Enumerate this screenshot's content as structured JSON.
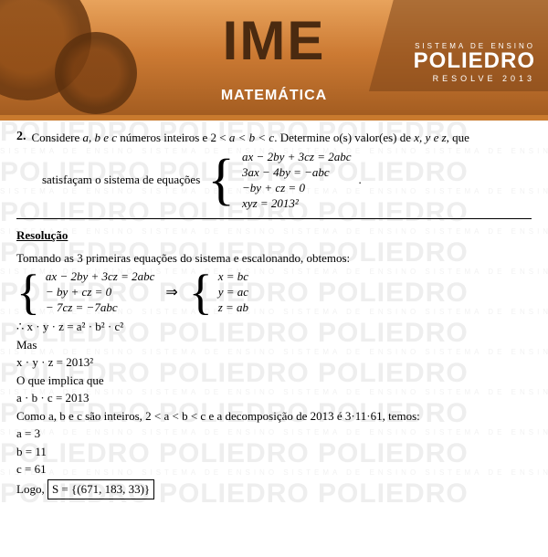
{
  "header": {
    "title": "IME",
    "subject": "MATEMÁTICA",
    "brand_sys": "SISTEMA DE ENSINO",
    "brand_name": "POLIEDRO",
    "brand_tag": "RESOLVE 2013"
  },
  "watermark": {
    "big": "POLIEDRO POLIEDRO POLIEDRO",
    "small": "SISTEMA DE ENSINO   SISTEMA DE ENSINO   SISTEMA DE ENSINO   SISTEMA DE ENSINO"
  },
  "question": {
    "number": "2.",
    "text_1": "Considere ",
    "vars": "a, b e c",
    "text_2": " números inteiros e 2 < ",
    "ineq": "a < b < c",
    "text_3": ". Determine o(s) valor(es) de ",
    "xyz": "x, y e z",
    "text_4": ", que",
    "satisfy": "satisfaçam o sistema de equações",
    "eq1": "ax − 2by + 3cz = 2abc",
    "eq2": "3ax − 4by = −abc",
    "eq3": "−by + cz = 0",
    "eq4": "xyz = 2013²",
    "period": "."
  },
  "solution": {
    "title": "Resolução",
    "intro": "Tomando as 3 primeiras equações do sistema e escalonando, obtemos:",
    "left_eq1": "ax − 2by + 3cz = 2abc",
    "left_eq2": "− by + cz = 0",
    "left_eq3": "− 7cz = −7abc",
    "right_eq1": "x = bc",
    "right_eq2": "y = ac",
    "right_eq3": "z = ab",
    "therefore": "∴ x · y · z = a² · b² · c²",
    "mas": "Mas",
    "xyz_val": "x · y · z = 2013²",
    "implies_text": "O que implica que",
    "abc_val": "a · b · c = 2013",
    "decomp": "Como a, b e c são inteiros,  2 < a < b < c  e a decomposição de 2013 é 3·11·61,  temos:",
    "a": "a = 3",
    "b": "b = 11",
    "c": "c = 61",
    "logo": "Logo,",
    "answer": "S = {(671, 183, 33)}"
  }
}
